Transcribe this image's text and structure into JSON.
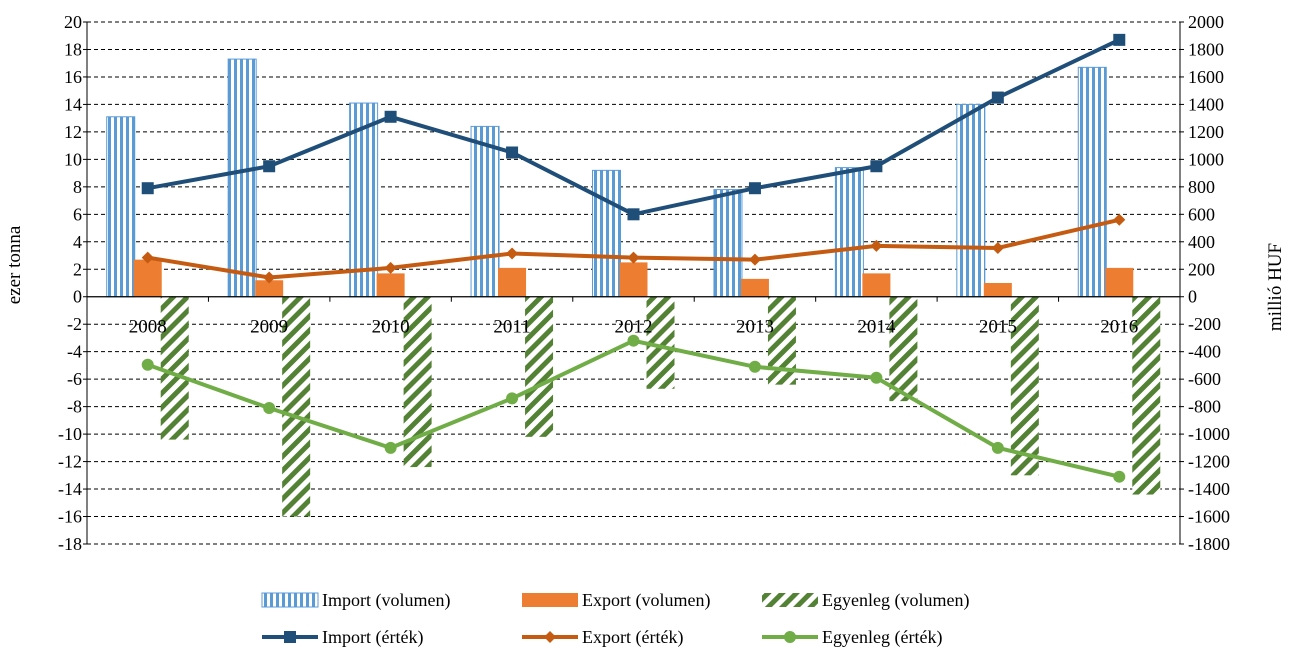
{
  "chart_data": {
    "type": "bar",
    "title": "",
    "categories": [
      "2008",
      "2009",
      "2010",
      "2011",
      "2012",
      "2013",
      "2014",
      "2015",
      "2016"
    ],
    "ylabel_left": "ezer tonna",
    "ylabel_right": "millió  HUF",
    "ylim_left": [
      -18,
      20
    ],
    "ylim_right": [
      -1800,
      2000
    ],
    "yticks_left": [
      "20",
      "18",
      "16",
      "14",
      "12",
      "10",
      "8",
      "6",
      "4",
      "2",
      "0",
      "-2",
      "-4",
      "-6",
      "-8",
      "-10",
      "-12",
      "-14",
      "-16",
      "-18"
    ],
    "yticks_right": [
      "2000",
      "1800",
      "1600",
      "1400",
      "1200",
      "1000",
      "800",
      "600",
      "400",
      "200",
      "0",
      "-200",
      "-400",
      "-600",
      "-800",
      "-1000",
      "-1200",
      "-1400",
      "-1600",
      "-1800"
    ],
    "grid": true,
    "legend_position": "bottom",
    "bar_series": [
      {
        "name": "Import (volumen)",
        "axis": "left",
        "color": "#5B9BD5",
        "pattern": "vertical-stripes",
        "values": [
          13.1,
          17.3,
          14.1,
          12.4,
          9.2,
          7.8,
          9.4,
          14.0,
          16.7
        ]
      },
      {
        "name": "Export (volumen)",
        "axis": "left",
        "color": "#ED7D31",
        "pattern": "solid",
        "values": [
          2.7,
          1.2,
          1.7,
          2.1,
          2.5,
          1.3,
          1.7,
          1.0,
          2.1
        ]
      },
      {
        "name": "Egyenleg (volumen)",
        "axis": "left",
        "color": "#70AD47",
        "pattern": "diagonal-hatch",
        "values": [
          -10.4,
          -16.0,
          -12.4,
          -10.2,
          -6.7,
          -6.4,
          -7.6,
          -13.0,
          -14.4
        ]
      }
    ],
    "line_series": [
      {
        "name": "Import (érték)",
        "axis": "right",
        "color": "#1F4E79",
        "marker": "square",
        "values": [
          790,
          950,
          1310,
          1050,
          600,
          790,
          950,
          1450,
          1870
        ]
      },
      {
        "name": "Export (érték)",
        "axis": "right",
        "color": "#C55A11",
        "marker": "diamond",
        "values": [
          285,
          140,
          210,
          315,
          285,
          270,
          370,
          355,
          560
        ]
      },
      {
        "name": "Egyenleg (érték)",
        "axis": "right",
        "color": "#70AD47",
        "marker": "circle",
        "values": [
          -495,
          -810,
          -1100,
          -740,
          -320,
          -510,
          -590,
          -1100,
          -1310
        ]
      }
    ]
  }
}
